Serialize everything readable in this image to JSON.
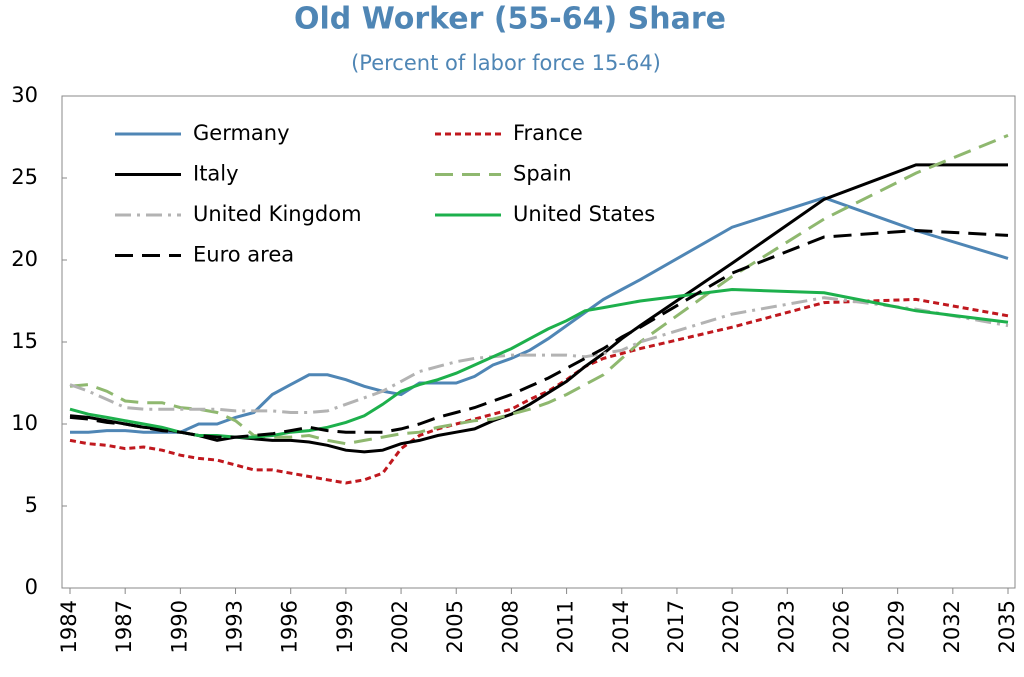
{
  "chart_data": {
    "type": "line",
    "title": "Old Worker (55-64) Share",
    "subtitle": "(Percent of labor force 15-64)",
    "x": [
      1984,
      1985,
      1986,
      1987,
      1988,
      1989,
      1990,
      1991,
      1992,
      1993,
      1994,
      1995,
      1996,
      1997,
      1998,
      1999,
      2000,
      2001,
      2002,
      2003,
      2004,
      2005,
      2006,
      2007,
      2008,
      2009,
      2010,
      2011,
      2012,
      2013,
      2014,
      2015,
      2020,
      2025,
      2030,
      2035
    ],
    "series": [
      {
        "name": "Germany",
        "color": "#4f86b5",
        "style": "solid",
        "values": [
          9.5,
          9.5,
          9.6,
          9.6,
          9.5,
          9.5,
          9.5,
          10.0,
          10.0,
          10.4,
          10.7,
          11.8,
          12.4,
          13.0,
          13.0,
          12.7,
          12.3,
          12.0,
          11.8,
          12.5,
          12.5,
          12.5,
          12.9,
          13.6,
          14.0,
          14.5,
          15.2,
          16.0,
          16.8,
          17.6,
          18.2,
          18.8,
          22.0,
          23.8,
          21.8,
          20.1
        ]
      },
      {
        "name": "France",
        "color": "#c0181e",
        "style": "dotted",
        "values": [
          9.0,
          8.8,
          8.7,
          8.5,
          8.6,
          8.4,
          8.1,
          7.9,
          7.8,
          7.5,
          7.2,
          7.2,
          7.0,
          6.8,
          6.6,
          6.4,
          6.6,
          7.0,
          8.5,
          9.3,
          9.7,
          10.0,
          10.3,
          10.6,
          10.9,
          11.5,
          12.0,
          12.7,
          13.5,
          14.0,
          14.3,
          14.6,
          15.9,
          17.4,
          17.6,
          16.6
        ]
      },
      {
        "name": "Italy",
        "color": "#000000",
        "style": "solid",
        "values": [
          10.5,
          10.4,
          10.2,
          10.0,
          9.8,
          9.7,
          9.5,
          9.3,
          9.0,
          9.2,
          9.1,
          9.0,
          9.0,
          8.9,
          8.7,
          8.4,
          8.3,
          8.4,
          8.8,
          9.0,
          9.3,
          9.5,
          9.7,
          10.2,
          10.6,
          11.2,
          11.9,
          12.6,
          13.5,
          14.3,
          15.2,
          16.0,
          19.8,
          23.7,
          25.8,
          25.8
        ]
      },
      {
        "name": "Spain",
        "color": "#8fb86f",
        "style": "dashed",
        "values": [
          12.3,
          12.4,
          12.0,
          11.4,
          11.3,
          11.3,
          11.0,
          10.9,
          10.7,
          10.2,
          9.3,
          9.2,
          9.2,
          9.3,
          9.0,
          8.8,
          9.0,
          9.2,
          9.4,
          9.5,
          9.8,
          10.0,
          10.2,
          10.3,
          10.6,
          10.9,
          11.3,
          11.8,
          12.4,
          13.0,
          14.0,
          15.0,
          19.0,
          22.5,
          25.3,
          27.6
        ]
      },
      {
        "name": "United Kingdom",
        "color": "#b3b3b3",
        "style": "dashdot",
        "values": [
          12.4,
          12.0,
          11.5,
          11.0,
          10.9,
          10.9,
          10.9,
          10.9,
          10.9,
          10.8,
          10.8,
          10.8,
          10.7,
          10.7,
          10.8,
          11.2,
          11.6,
          12.0,
          12.6,
          13.2,
          13.5,
          13.8,
          14.0,
          14.1,
          14.2,
          14.2,
          14.2,
          14.2,
          14.1,
          14.3,
          14.5,
          15.0,
          16.7,
          17.7,
          17.0,
          16.0
        ]
      },
      {
        "name": "United States",
        "color": "#1db04c",
        "style": "solid",
        "values": [
          10.9,
          10.6,
          10.4,
          10.2,
          10.0,
          9.8,
          9.5,
          9.3,
          9.3,
          9.2,
          9.2,
          9.3,
          9.5,
          9.6,
          9.8,
          10.1,
          10.5,
          11.2,
          12.0,
          12.4,
          12.7,
          13.1,
          13.6,
          14.1,
          14.6,
          15.2,
          15.8,
          16.3,
          16.9,
          17.1,
          17.3,
          17.5,
          18.2,
          18.0,
          16.9,
          16.2
        ]
      },
      {
        "name": "Euro area",
        "color": "#000000",
        "style": "dashed",
        "values": [
          10.4,
          10.3,
          10.1,
          10.0,
          9.8,
          9.6,
          9.5,
          9.3,
          9.2,
          9.2,
          9.3,
          9.4,
          9.6,
          9.8,
          9.6,
          9.5,
          9.5,
          9.5,
          9.7,
          10.0,
          10.4,
          10.7,
          11.0,
          11.4,
          11.8,
          12.3,
          12.8,
          13.4,
          14.0,
          14.6,
          15.3,
          15.9,
          19.2,
          21.4,
          21.8,
          21.5
        ]
      }
    ],
    "xlim": [
      1984,
      2035
    ],
    "xticks": [
      1984,
      1987,
      1990,
      1993,
      1996,
      1999,
      2002,
      2005,
      2008,
      2011,
      2014,
      2017,
      2020,
      2023,
      2026,
      2029,
      2032,
      2035
    ],
    "ylim": [
      0,
      30
    ],
    "yticks": [
      0,
      5,
      10,
      15,
      20,
      25,
      30
    ],
    "legend": "upper left"
  }
}
